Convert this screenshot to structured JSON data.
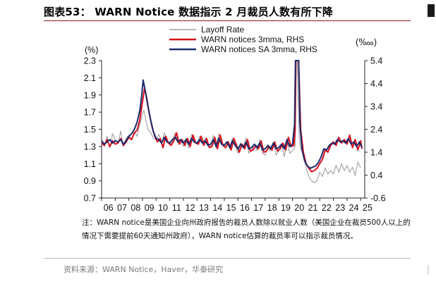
{
  "figure": {
    "title": "图表53：  WARN Notice 数据指示 2 月裁员人数有所下降",
    "note": "注：WARN notice是美国企业向州政府报告的裁员人数除以就业人数（美国企业在裁员500人以上的情况下需要提前60天通知州政府），WARN notice估算的裁员率可以指示裁员情况。",
    "source": "资料来源：WARN Notice，Haver，华泰研究"
  },
  "chart_data": {
    "type": "line",
    "left_axis_unit": "(%)",
    "right_axis_unit": "(‱)",
    "x_start_year": 2006,
    "x_end_year": 2025.3,
    "x_tick_labels": [
      "06",
      "07",
      "08",
      "09",
      "10",
      "11",
      "12",
      "13",
      "14",
      "15",
      "16",
      "17",
      "18",
      "19",
      "20",
      "21",
      "22",
      "23",
      "24",
      "25"
    ],
    "ylim_left": [
      0.7,
      2.3
    ],
    "yticks_left": [
      "0.7",
      "0.9",
      "1.1",
      "1.3",
      "1.5",
      "1.7",
      "1.9",
      "2.1",
      "2.3"
    ],
    "ylim_right": [
      -0.6,
      5.4
    ],
    "yticks_right": [
      "-0.6",
      "0.4",
      "1.4",
      "2.4",
      "3.4",
      "4.4",
      "5.4"
    ],
    "colors": {
      "layoff": "#a0a0a0",
      "warn": "#d9101b",
      "warn_sa": "#1b2a6b"
    },
    "series": [
      {
        "name": "Layoff Rate",
        "axis": "left",
        "x": [
          2006.0,
          2006.2,
          2006.4,
          2006.6,
          2006.8,
          2007.0,
          2007.2,
          2007.4,
          2007.6,
          2007.8,
          2008.0,
          2008.2,
          2008.4,
          2008.6,
          2008.8,
          2009.0,
          2009.1,
          2009.25,
          2009.4,
          2009.6,
          2009.8,
          2010.0,
          2010.2,
          2010.4,
          2010.6,
          2010.8,
          2011.0,
          2011.2,
          2011.4,
          2011.6,
          2011.8,
          2012.0,
          2012.2,
          2012.4,
          2012.6,
          2012.8,
          2013.0,
          2013.2,
          2013.4,
          2013.6,
          2013.8,
          2014.0,
          2014.2,
          2014.4,
          2014.6,
          2014.8,
          2015.0,
          2015.2,
          2015.4,
          2015.6,
          2015.8,
          2016.0,
          2016.2,
          2016.4,
          2016.6,
          2016.8,
          2017.0,
          2017.2,
          2017.4,
          2017.6,
          2017.8,
          2018.0,
          2018.2,
          2018.4,
          2018.6,
          2018.8,
          2019.0,
          2019.2,
          2019.4,
          2019.6,
          2019.8,
          2020.0,
          2020.2,
          2020.25,
          2020.3,
          2020.35,
          2020.4,
          2020.5,
          2020.6,
          2020.8,
          2021.0,
          2021.2,
          2021.4,
          2021.6,
          2021.8,
          2022.0,
          2022.2,
          2022.4,
          2022.6,
          2022.8,
          2023.0,
          2023.2,
          2023.4,
          2023.6,
          2023.8,
          2024.0,
          2024.2,
          2024.4,
          2024.6,
          2024.8,
          2025.0
        ],
        "values": [
          1.35,
          1.3,
          1.42,
          1.28,
          1.45,
          1.38,
          1.33,
          1.48,
          1.3,
          1.4,
          1.43,
          1.38,
          1.47,
          1.42,
          1.55,
          1.68,
          1.72,
          1.6,
          1.5,
          1.46,
          1.4,
          1.38,
          1.44,
          1.33,
          1.46,
          1.38,
          1.32,
          1.37,
          1.46,
          1.34,
          1.36,
          1.3,
          1.4,
          1.28,
          1.44,
          1.36,
          1.33,
          1.42,
          1.34,
          1.4,
          1.31,
          1.3,
          1.43,
          1.28,
          1.45,
          1.34,
          1.32,
          1.36,
          1.27,
          1.4,
          1.32,
          1.22,
          1.34,
          1.3,
          1.4,
          1.22,
          1.26,
          1.33,
          1.25,
          1.38,
          1.22,
          1.2,
          1.3,
          1.25,
          1.35,
          1.2,
          1.25,
          1.32,
          1.18,
          1.38,
          1.22,
          1.25,
          1.3,
          2.3,
          2.3,
          2.3,
          1.9,
          1.4,
          1.28,
          1.22,
          1.05,
          0.95,
          0.9,
          0.88,
          0.9,
          1.0,
          0.95,
          1.05,
          0.98,
          1.02,
          0.98,
          1.08,
          1.0,
          1.1,
          1.02,
          1.08,
          1.0,
          1.06,
          0.96,
          1.12,
          1.05
        ]
      },
      {
        "name": "WARN notices 3mma, RHS",
        "axis": "right",
        "x": [
          2006.0,
          2006.2,
          2006.4,
          2006.6,
          2006.8,
          2007.0,
          2007.2,
          2007.4,
          2007.6,
          2007.8,
          2008.0,
          2008.2,
          2008.4,
          2008.6,
          2008.8,
          2009.0,
          2009.15,
          2009.3,
          2009.5,
          2009.7,
          2009.9,
          2010.1,
          2010.3,
          2010.5,
          2010.7,
          2010.9,
          2011.1,
          2011.3,
          2011.5,
          2011.7,
          2011.9,
          2012.1,
          2012.3,
          2012.5,
          2012.7,
          2012.9,
          2013.1,
          2013.3,
          2013.5,
          2013.7,
          2013.9,
          2014.1,
          2014.3,
          2014.5,
          2014.7,
          2014.9,
          2015.1,
          2015.3,
          2015.5,
          2015.7,
          2015.9,
          2016.1,
          2016.3,
          2016.5,
          2016.7,
          2016.9,
          2017.1,
          2017.3,
          2017.5,
          2017.7,
          2017.9,
          2018.1,
          2018.3,
          2018.5,
          2018.7,
          2018.9,
          2019.1,
          2019.3,
          2019.5,
          2019.7,
          2019.9,
          2020.1,
          2020.2,
          2020.25,
          2020.3,
          2020.35,
          2020.45,
          2020.6,
          2020.8,
          2021.0,
          2021.2,
          2021.4,
          2021.6,
          2021.8,
          2022.0,
          2022.2,
          2022.4,
          2022.6,
          2022.8,
          2023.0,
          2023.2,
          2023.4,
          2023.6,
          2023.8,
          2024.0,
          2024.2,
          2024.4,
          2024.6,
          2024.8,
          2025.0,
          2025.1
        ],
        "values": [
          1.8,
          1.7,
          1.95,
          1.65,
          1.9,
          1.75,
          1.8,
          2.0,
          1.7,
          1.85,
          2.05,
          1.95,
          2.25,
          2.35,
          2.8,
          3.6,
          4.2,
          3.8,
          3.1,
          2.5,
          2.1,
          1.85,
          2.0,
          1.6,
          2.1,
          1.8,
          1.7,
          1.9,
          2.25,
          1.75,
          1.95,
          1.7,
          2.0,
          1.65,
          2.15,
          1.8,
          1.75,
          2.1,
          1.7,
          2.0,
          1.6,
          1.65,
          2.05,
          1.55,
          2.15,
          1.7,
          1.6,
          1.85,
          1.5,
          2.0,
          1.7,
          1.4,
          1.75,
          1.55,
          1.95,
          1.45,
          1.5,
          1.7,
          1.55,
          1.9,
          1.4,
          1.45,
          1.65,
          1.5,
          1.85,
          1.45,
          1.55,
          1.8,
          1.5,
          2.05,
          1.65,
          1.7,
          2.4,
          5.4,
          5.4,
          5.4,
          5.4,
          2.4,
          1.4,
          0.9,
          0.7,
          0.55,
          0.6,
          0.7,
          0.9,
          1.1,
          1.5,
          1.4,
          1.7,
          1.85,
          1.7,
          2.05,
          1.8,
          1.95,
          1.75,
          2.15,
          1.6,
          1.95,
          1.5,
          1.9,
          1.55
        ]
      },
      {
        "name": "WARN notices SA 3mma, RHS",
        "axis": "right",
        "x": [
          2006.0,
          2006.2,
          2006.4,
          2006.6,
          2006.8,
          2007.0,
          2007.2,
          2007.4,
          2007.6,
          2007.8,
          2008.0,
          2008.2,
          2008.4,
          2008.6,
          2008.8,
          2008.95,
          2009.05,
          2009.2,
          2009.4,
          2009.6,
          2009.8,
          2010.0,
          2010.2,
          2010.4,
          2010.6,
          2010.8,
          2011.0,
          2011.2,
          2011.4,
          2011.6,
          2011.8,
          2012.0,
          2012.2,
          2012.4,
          2012.6,
          2012.8,
          2013.0,
          2013.2,
          2013.4,
          2013.6,
          2013.8,
          2014.0,
          2014.2,
          2014.4,
          2014.6,
          2014.8,
          2015.0,
          2015.2,
          2015.4,
          2015.6,
          2015.8,
          2016.0,
          2016.2,
          2016.4,
          2016.6,
          2016.8,
          2017.0,
          2017.2,
          2017.4,
          2017.6,
          2017.8,
          2018.0,
          2018.2,
          2018.4,
          2018.6,
          2018.8,
          2019.0,
          2019.2,
          2019.4,
          2019.6,
          2019.8,
          2020.0,
          2020.15,
          2020.22,
          2020.3,
          2020.38,
          2020.45,
          2020.55,
          2020.7,
          2020.9,
          2021.1,
          2021.3,
          2021.5,
          2021.7,
          2021.9,
          2022.1,
          2022.3,
          2022.5,
          2022.7,
          2022.9,
          2023.1,
          2023.3,
          2023.5,
          2023.7,
          2023.9,
          2024.1,
          2024.3,
          2024.5,
          2024.7,
          2024.9,
          2025.1
        ],
        "values": [
          1.9,
          1.75,
          1.85,
          1.95,
          1.8,
          1.9,
          1.85,
          1.95,
          1.75,
          1.9,
          2.1,
          2.2,
          2.4,
          2.7,
          3.2,
          3.9,
          4.55,
          4.1,
          3.4,
          2.8,
          2.3,
          2.0,
          1.95,
          1.8,
          2.05,
          1.85,
          1.8,
          1.95,
          2.05,
          1.85,
          1.95,
          1.8,
          1.95,
          1.75,
          2.0,
          1.85,
          1.8,
          1.95,
          1.8,
          1.9,
          1.7,
          1.75,
          1.95,
          1.65,
          2.0,
          1.75,
          1.7,
          1.85,
          1.6,
          1.9,
          1.7,
          1.55,
          1.75,
          1.6,
          1.85,
          1.55,
          1.6,
          1.75,
          1.6,
          1.8,
          1.5,
          1.55,
          1.7,
          1.55,
          1.8,
          1.55,
          1.6,
          1.75,
          1.55,
          1.95,
          1.65,
          1.75,
          2.6,
          5.4,
          5.4,
          5.4,
          5.4,
          2.6,
          1.5,
          1.0,
          0.8,
          0.7,
          0.75,
          0.8,
          0.95,
          1.2,
          1.55,
          1.5,
          1.7,
          1.8,
          1.75,
          1.95,
          1.85,
          1.9,
          1.8,
          2.0,
          1.75,
          1.85,
          1.65,
          1.85,
          1.6
        ]
      }
    ]
  }
}
